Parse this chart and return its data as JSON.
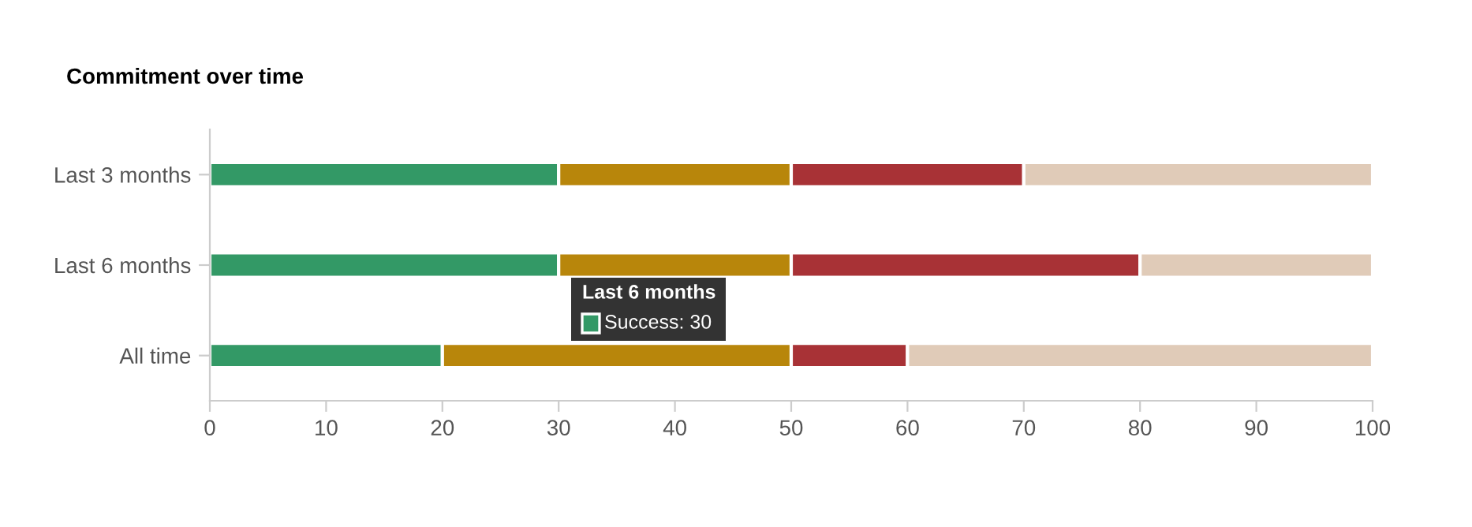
{
  "chart_data": {
    "type": "bar",
    "title": "Commitment over time",
    "orientation": "horizontal",
    "stacked": true,
    "categories": [
      "Last 3 months",
      "Last 6 months",
      "All time"
    ],
    "series": [
      {
        "color": "#339966",
        "values": [
          30,
          30,
          20
        ]
      },
      {
        "color": "#b8860b",
        "values": [
          20,
          20,
          30
        ]
      },
      {
        "color": "#a83236",
        "values": [
          20,
          30,
          10
        ]
      },
      {
        "color": "#e0cbb8",
        "values": [
          30,
          20,
          40
        ]
      }
    ],
    "xlim": [
      0,
      100
    ],
    "xticks": [
      0,
      10,
      20,
      30,
      40,
      50,
      60,
      70,
      80,
      90,
      100
    ],
    "grid": false,
    "legend": false,
    "annotations": [
      "Last 6 months",
      "Success: 30"
    ]
  }
}
